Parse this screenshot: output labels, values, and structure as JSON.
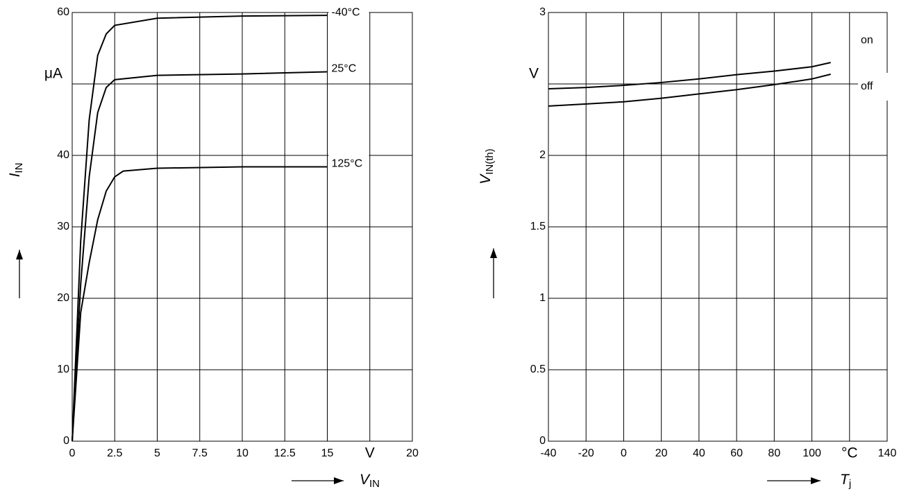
{
  "chart_data": [
    {
      "type": "line",
      "xlabel": {
        "text": "V",
        "sub": "IN"
      },
      "ylabel": {
        "text": "I",
        "sub": "IN"
      },
      "xlim": [
        0,
        20
      ],
      "ylim": [
        0,
        60
      ],
      "xticks": [
        0,
        2.5,
        5,
        7.5,
        10,
        12.5,
        15,
        {
          "value": 17.5,
          "label": "V"
        },
        20
      ],
      "yticks": [
        0,
        10,
        20,
        30,
        40,
        {
          "value": 50,
          "label": "μA"
        },
        60
      ],
      "grid": true,
      "series": [
        {
          "name": "-40°C",
          "color": "#000000",
          "x": [
            0,
            0.5,
            1,
            1.5,
            2,
            2.5,
            5,
            10,
            15
          ],
          "values": [
            0,
            28,
            45,
            54,
            57,
            58.2,
            59.2,
            59.5,
            59.6
          ]
        },
        {
          "name": "25°C",
          "color": "#000000",
          "x": [
            0,
            0.5,
            1,
            1.5,
            2,
            2.5,
            5,
            10,
            15
          ],
          "values": [
            0,
            22,
            37,
            46,
            49.5,
            50.6,
            51.2,
            51.4,
            51.7
          ]
        },
        {
          "name": "125°C",
          "color": "#000000",
          "x": [
            0,
            0.5,
            1,
            1.5,
            2,
            2.5,
            3,
            5,
            10,
            15
          ],
          "values": [
            0,
            18,
            25,
            31,
            35,
            37,
            37.8,
            38.2,
            38.4,
            38.4
          ]
        }
      ]
    },
    {
      "type": "line",
      "xlabel": {
        "text": "T",
        "sub": "j"
      },
      "ylabel": {
        "text": "V",
        "sub": "IN(th)"
      },
      "xlim": [
        -40,
        140
      ],
      "ylim": [
        0,
        3
      ],
      "xticks": [
        -40,
        -20,
        0,
        20,
        40,
        60,
        80,
        100,
        {
          "value": 120,
          "label": "°C"
        },
        140
      ],
      "yticks": [
        0,
        0.5,
        1,
        1.5,
        2,
        {
          "value": 2.5,
          "label": "V"
        },
        3
      ],
      "grid": true,
      "series": [
        {
          "name": "on",
          "color": "#000000",
          "x": [
            -40,
            -20,
            0,
            20,
            40,
            60,
            80,
            100,
            110
          ],
          "values": [
            2.466,
            2.475,
            2.49,
            2.51,
            2.535,
            2.565,
            2.59,
            2.62,
            2.65
          ]
        },
        {
          "name": "off",
          "color": "#000000",
          "x": [
            -40,
            -20,
            0,
            20,
            40,
            60,
            80,
            100,
            110
          ],
          "values": [
            2.345,
            2.36,
            2.375,
            2.4,
            2.43,
            2.46,
            2.495,
            2.535,
            2.568
          ]
        }
      ]
    }
  ]
}
